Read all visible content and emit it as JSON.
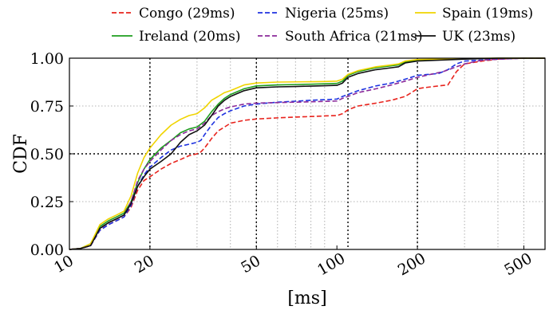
{
  "chart_data": {
    "type": "line",
    "xlabel": "[ms]",
    "ylabel": "CDF",
    "xscale": "log",
    "xlim": [
      10,
      600
    ],
    "ylim": [
      0,
      1
    ],
    "x_ticks": [
      10,
      20,
      50,
      100,
      200,
      500
    ],
    "x_tick_labels": [
      "10",
      "20",
      "50",
      "100",
      "200",
      "500"
    ],
    "y_ticks": [
      0,
      0.25,
      0.5,
      0.75,
      1.0
    ],
    "y_tick_labels": [
      "0.00",
      "0.25",
      "0.50",
      "0.75",
      "1.00"
    ],
    "grid": "dotted",
    "legend_position": "top, above plot, 3 columns",
    "vertical_reference_lines_x": [
      20,
      50,
      110,
      200
    ],
    "horizontal_reference_line_y": 0.5,
    "series": [
      {
        "name": "Congo (29ms)",
        "color": "#e8231d",
        "dash": "dashed",
        "points": [
          [
            10,
            0
          ],
          [
            11,
            0.005
          ],
          [
            12,
            0.02
          ],
          [
            13,
            0.1
          ],
          [
            14,
            0.13
          ],
          [
            15,
            0.15
          ],
          [
            16,
            0.17
          ],
          [
            17,
            0.22
          ],
          [
            18,
            0.31
          ],
          [
            19,
            0.36
          ],
          [
            20,
            0.38
          ],
          [
            22,
            0.42
          ],
          [
            24,
            0.45
          ],
          [
            26,
            0.47
          ],
          [
            28,
            0.49
          ],
          [
            30,
            0.5
          ],
          [
            31,
            0.51
          ],
          [
            32,
            0.53
          ],
          [
            34,
            0.58
          ],
          [
            36,
            0.62
          ],
          [
            38,
            0.64
          ],
          [
            40,
            0.66
          ],
          [
            45,
            0.675
          ],
          [
            50,
            0.682
          ],
          [
            60,
            0.688
          ],
          [
            70,
            0.692
          ],
          [
            80,
            0.695
          ],
          [
            90,
            0.698
          ],
          [
            100,
            0.7
          ],
          [
            105,
            0.71
          ],
          [
            110,
            0.73
          ],
          [
            120,
            0.75
          ],
          [
            140,
            0.765
          ],
          [
            160,
            0.78
          ],
          [
            180,
            0.8
          ],
          [
            190,
            0.82
          ],
          [
            200,
            0.84
          ],
          [
            210,
            0.845
          ],
          [
            240,
            0.855
          ],
          [
            260,
            0.86
          ],
          [
            280,
            0.93
          ],
          [
            300,
            0.97
          ],
          [
            350,
            0.985
          ],
          [
            400,
            0.995
          ],
          [
            500,
            1.0
          ],
          [
            600,
            1.0
          ]
        ]
      },
      {
        "name": "Ireland (20ms)",
        "color": "#1e9e1e",
        "dash": "solid",
        "points": [
          [
            10,
            0
          ],
          [
            11,
            0.005
          ],
          [
            12,
            0.03
          ],
          [
            13,
            0.12
          ],
          [
            14,
            0.15
          ],
          [
            15,
            0.17
          ],
          [
            16,
            0.19
          ],
          [
            17,
            0.25
          ],
          [
            18,
            0.35
          ],
          [
            19,
            0.42
          ],
          [
            20,
            0.47
          ],
          [
            22,
            0.53
          ],
          [
            24,
            0.57
          ],
          [
            26,
            0.61
          ],
          [
            28,
            0.63
          ],
          [
            30,
            0.64
          ],
          [
            32,
            0.67
          ],
          [
            34,
            0.72
          ],
          [
            36,
            0.76
          ],
          [
            38,
            0.79
          ],
          [
            40,
            0.81
          ],
          [
            45,
            0.84
          ],
          [
            50,
            0.855
          ],
          [
            60,
            0.86
          ],
          [
            70,
            0.862
          ],
          [
            80,
            0.864
          ],
          [
            90,
            0.866
          ],
          [
            100,
            0.868
          ],
          [
            105,
            0.88
          ],
          [
            110,
            0.91
          ],
          [
            120,
            0.93
          ],
          [
            140,
            0.95
          ],
          [
            160,
            0.96
          ],
          [
            170,
            0.965
          ],
          [
            180,
            0.98
          ],
          [
            200,
            0.99
          ],
          [
            300,
            0.997
          ],
          [
            400,
            1.0
          ],
          [
            600,
            1.0
          ]
        ]
      },
      {
        "name": "Nigeria (25ms)",
        "color": "#1e32e0",
        "dash": "dashed",
        "points": [
          [
            10,
            0
          ],
          [
            11,
            0.005
          ],
          [
            12,
            0.02
          ],
          [
            13,
            0.1
          ],
          [
            14,
            0.13
          ],
          [
            15,
            0.15
          ],
          [
            16,
            0.17
          ],
          [
            17,
            0.23
          ],
          [
            18,
            0.33
          ],
          [
            19,
            0.39
          ],
          [
            20,
            0.43
          ],
          [
            22,
            0.48
          ],
          [
            24,
            0.52
          ],
          [
            26,
            0.54
          ],
          [
            28,
            0.55
          ],
          [
            30,
            0.56
          ],
          [
            31,
            0.57
          ],
          [
            32,
            0.6
          ],
          [
            34,
            0.65
          ],
          [
            36,
            0.69
          ],
          [
            38,
            0.71
          ],
          [
            40,
            0.725
          ],
          [
            45,
            0.75
          ],
          [
            50,
            0.76
          ],
          [
            60,
            0.77
          ],
          [
            70,
            0.775
          ],
          [
            80,
            0.78
          ],
          [
            90,
            0.783
          ],
          [
            100,
            0.786
          ],
          [
            105,
            0.8
          ],
          [
            110,
            0.81
          ],
          [
            120,
            0.83
          ],
          [
            140,
            0.855
          ],
          [
            160,
            0.87
          ],
          [
            180,
            0.89
          ],
          [
            200,
            0.91
          ],
          [
            240,
            0.92
          ],
          [
            260,
            0.94
          ],
          [
            280,
            0.97
          ],
          [
            300,
            0.985
          ],
          [
            400,
            0.995
          ],
          [
            500,
            1.0
          ],
          [
            600,
            1.0
          ]
        ]
      },
      {
        "name": "South Africa (21ms)",
        "color": "#8b2a9a",
        "dash": "dashed",
        "points": [
          [
            10,
            0
          ],
          [
            11,
            0.005
          ],
          [
            12,
            0.02
          ],
          [
            13,
            0.11
          ],
          [
            14,
            0.14
          ],
          [
            15,
            0.16
          ],
          [
            16,
            0.18
          ],
          [
            17,
            0.25
          ],
          [
            18,
            0.36
          ],
          [
            19,
            0.42
          ],
          [
            20,
            0.46
          ],
          [
            22,
            0.52
          ],
          [
            24,
            0.57
          ],
          [
            26,
            0.6
          ],
          [
            28,
            0.62
          ],
          [
            30,
            0.63
          ],
          [
            32,
            0.66
          ],
          [
            34,
            0.7
          ],
          [
            36,
            0.72
          ],
          [
            38,
            0.735
          ],
          [
            40,
            0.745
          ],
          [
            45,
            0.76
          ],
          [
            50,
            0.765
          ],
          [
            60,
            0.768
          ],
          [
            70,
            0.77
          ],
          [
            80,
            0.772
          ],
          [
            90,
            0.774
          ],
          [
            100,
            0.776
          ],
          [
            105,
            0.79
          ],
          [
            110,
            0.8
          ],
          [
            120,
            0.82
          ],
          [
            140,
            0.84
          ],
          [
            160,
            0.86
          ],
          [
            180,
            0.88
          ],
          [
            200,
            0.9
          ],
          [
            250,
            0.93
          ],
          [
            300,
            0.97
          ],
          [
            350,
            0.99
          ],
          [
            400,
            0.995
          ],
          [
            500,
            1.0
          ],
          [
            600,
            1.0
          ]
        ]
      },
      {
        "name": "Spain (19ms)",
        "color": "#f0d400",
        "dash": "solid",
        "points": [
          [
            10,
            0
          ],
          [
            11,
            0.005
          ],
          [
            12,
            0.03
          ],
          [
            13,
            0.13
          ],
          [
            14,
            0.16
          ],
          [
            15,
            0.18
          ],
          [
            16,
            0.2
          ],
          [
            17,
            0.28
          ],
          [
            18,
            0.4
          ],
          [
            19,
            0.48
          ],
          [
            20,
            0.53
          ],
          [
            22,
            0.6
          ],
          [
            24,
            0.65
          ],
          [
            26,
            0.68
          ],
          [
            28,
            0.7
          ],
          [
            30,
            0.71
          ],
          [
            32,
            0.74
          ],
          [
            34,
            0.78
          ],
          [
            36,
            0.8
          ],
          [
            38,
            0.82
          ],
          [
            40,
            0.83
          ],
          [
            45,
            0.86
          ],
          [
            50,
            0.87
          ],
          [
            60,
            0.875
          ],
          [
            70,
            0.876
          ],
          [
            80,
            0.877
          ],
          [
            90,
            0.878
          ],
          [
            100,
            0.88
          ],
          [
            105,
            0.89
          ],
          [
            110,
            0.915
          ],
          [
            120,
            0.935
          ],
          [
            140,
            0.955
          ],
          [
            160,
            0.965
          ],
          [
            170,
            0.97
          ],
          [
            180,
            0.985
          ],
          [
            200,
            0.993
          ],
          [
            300,
            0.998
          ],
          [
            400,
            1.0
          ],
          [
            600,
            1.0
          ]
        ]
      },
      {
        "name": "UK (23ms)",
        "color": "#111111",
        "dash": "solid",
        "points": [
          [
            10,
            0
          ],
          [
            11,
            0.005
          ],
          [
            12,
            0.02
          ],
          [
            13,
            0.11
          ],
          [
            14,
            0.14
          ],
          [
            15,
            0.16
          ],
          [
            16,
            0.18
          ],
          [
            17,
            0.24
          ],
          [
            18,
            0.33
          ],
          [
            19,
            0.38
          ],
          [
            20,
            0.42
          ],
          [
            22,
            0.46
          ],
          [
            24,
            0.5
          ],
          [
            26,
            0.56
          ],
          [
            28,
            0.6
          ],
          [
            30,
            0.62
          ],
          [
            32,
            0.65
          ],
          [
            34,
            0.7
          ],
          [
            36,
            0.75
          ],
          [
            38,
            0.78
          ],
          [
            40,
            0.8
          ],
          [
            45,
            0.83
          ],
          [
            50,
            0.845
          ],
          [
            60,
            0.85
          ],
          [
            70,
            0.852
          ],
          [
            80,
            0.854
          ],
          [
            90,
            0.856
          ],
          [
            100,
            0.858
          ],
          [
            105,
            0.87
          ],
          [
            110,
            0.9
          ],
          [
            120,
            0.92
          ],
          [
            140,
            0.94
          ],
          [
            160,
            0.95
          ],
          [
            170,
            0.955
          ],
          [
            180,
            0.975
          ],
          [
            200,
            0.985
          ],
          [
            300,
            0.995
          ],
          [
            400,
            1.0
          ],
          [
            600,
            1.0
          ]
        ]
      }
    ]
  }
}
